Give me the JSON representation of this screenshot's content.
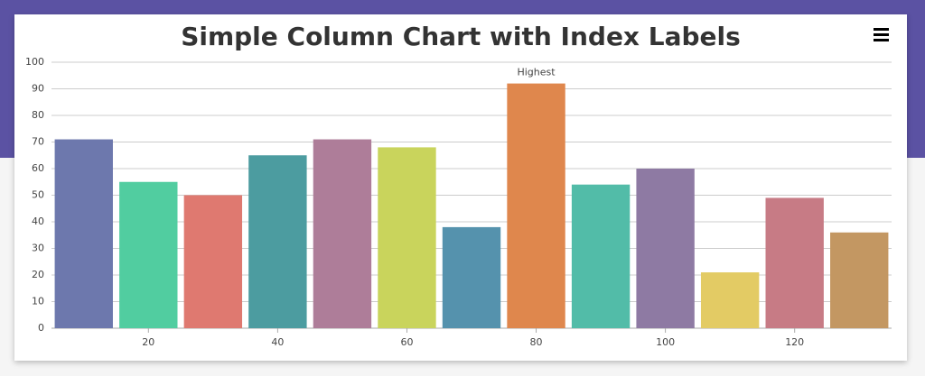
{
  "chart_data": {
    "type": "bar",
    "title": "Simple Column Chart with Index Labels",
    "x": [
      10,
      20,
      30,
      40,
      50,
      60,
      70,
      80,
      90,
      100,
      110,
      120,
      130
    ],
    "values": [
      71,
      55,
      50,
      65,
      71,
      68,
      38,
      92,
      54,
      60,
      21,
      49,
      36
    ],
    "colors": [
      "#6d78ad",
      "#51cda0",
      "#df7970",
      "#4c9ca0",
      "#ae7d99",
      "#c9d45c",
      "#5592ad",
      "#df874d",
      "#52bca8",
      "#8e7aa3",
      "#e3cb64",
      "#c77b85",
      "#c39762"
    ],
    "annotations": [
      {
        "x": 80,
        "text": "Highest"
      }
    ],
    "xlim": [
      5,
      135
    ],
    "xticks": [
      20,
      40,
      60,
      80,
      100,
      120
    ],
    "ylim": [
      0,
      100
    ],
    "yticks": [
      0,
      10,
      20,
      30,
      40,
      50,
      60,
      70,
      80,
      90,
      100
    ],
    "grid": true
  }
}
